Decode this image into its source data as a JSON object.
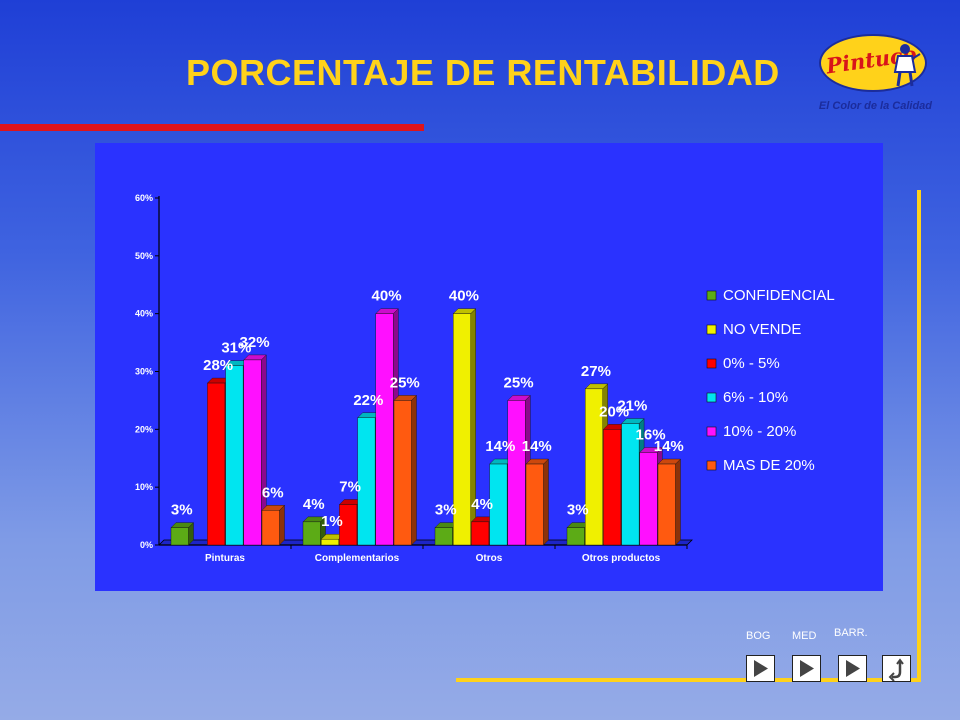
{
  "header": {
    "title": "PORCENTAJE DE RENTABILIDAD",
    "logo_text": "Pintuco",
    "logo_tagline": "El Color de la Calidad",
    "accent_color": "#ffd21a",
    "rule_color": "#e0141a",
    "icons": [
      "pintuco-logo",
      "painter-figure-icon"
    ]
  },
  "nav": {
    "labels": [
      "BOG",
      "MED",
      "BARR."
    ],
    "buttons": [
      {
        "icon": "play-icon"
      },
      {
        "icon": "play-icon"
      },
      {
        "icon": "play-icon"
      },
      {
        "icon": "return-icon"
      }
    ]
  },
  "chart_data": {
    "type": "bar",
    "three_d": true,
    "categories": [
      "Pinturas",
      "Complementarios",
      "Otros",
      "Otros productos"
    ],
    "series": [
      {
        "name": "CONFIDENCIAL",
        "color": "#5cab16",
        "values": [
          3,
          4,
          3,
          3
        ],
        "labels": [
          "3%",
          "4%",
          "3%",
          "3%"
        ]
      },
      {
        "name": "NO VENDE",
        "color": "#f0f000",
        "values": [
          null,
          1,
          40,
          27
        ],
        "labels": [
          "",
          "1%",
          "40%",
          "27%"
        ]
      },
      {
        "name": "0% - 5%",
        "color": "#ff0000",
        "values": [
          28,
          7,
          4,
          20
        ],
        "labels": [
          "28%",
          "7%",
          "4%",
          "20%"
        ]
      },
      {
        "name": "6% - 10%",
        "color": "#00e5f0",
        "values": [
          31,
          22,
          14,
          21
        ],
        "labels": [
          "31%",
          "22%",
          "14%",
          "21%"
        ]
      },
      {
        "name": "10% - 20%",
        "color": "#ff10ff",
        "values": [
          32,
          40,
          25,
          16
        ],
        "labels": [
          "32%",
          "40%",
          "25%",
          "16%"
        ]
      },
      {
        "name": "MAS DE 20%",
        "color": "#ff5a10",
        "values": [
          6,
          25,
          14,
          14
        ],
        "labels": [
          "6%",
          "25%",
          "14%",
          "14%"
        ]
      }
    ],
    "y_ticks": [
      "0%",
      "10%",
      "20%",
      "30%",
      "40%",
      "50%",
      "60%"
    ],
    "ylim": [
      0,
      60
    ],
    "grid": false,
    "legend_position": "right",
    "background_color": "#2a32ff"
  }
}
